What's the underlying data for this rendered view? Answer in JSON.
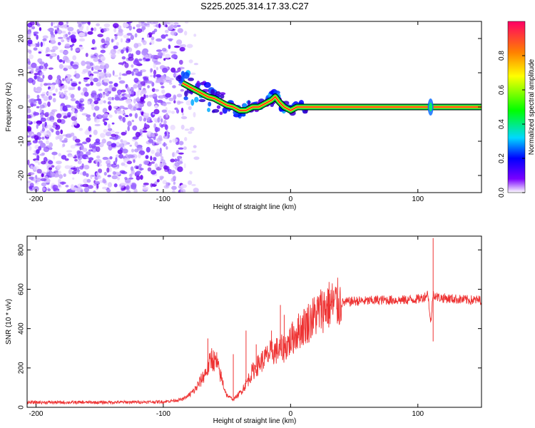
{
  "title": "S225.2025.314.17.33.C27",
  "chart_data": [
    {
      "type": "heatmap",
      "title": "S225.2025.314.17.33.C27",
      "xlabel": "Height of straight line (km)",
      "ylabel": "Frequency (Hz)",
      "xlim": [
        -207,
        150
      ],
      "ylim": [
        -25,
        25
      ],
      "xticks": [
        -200,
        -100,
        0,
        100
      ],
      "yticks": [
        -20,
        -10,
        0,
        10,
        20
      ],
      "colorbar": {
        "label": "Normalized spectral amplitude",
        "range": [
          0,
          1
        ],
        "ticks": [
          0.0,
          0.2,
          0.4,
          0.6,
          0.8
        ],
        "tick_labels": [
          "0.0",
          "0.2",
          "0.4",
          "0.6",
          "0.8"
        ]
      },
      "noise_region_x": [
        -207,
        -85
      ],
      "carrier_track": [
        {
          "x": -85,
          "f": 7
        },
        {
          "x": -80,
          "f": 6
        },
        {
          "x": -75,
          "f": 5
        },
        {
          "x": -70,
          "f": 4
        },
        {
          "x": -65,
          "f": 3
        },
        {
          "x": -60,
          "f": 2.5
        },
        {
          "x": -55,
          "f": 1.5
        },
        {
          "x": -50,
          "f": 0.5
        },
        {
          "x": -45,
          "f": 0
        },
        {
          "x": -40,
          "f": -1
        },
        {
          "x": -35,
          "f": -1
        },
        {
          "x": -30,
          "f": 0
        },
        {
          "x": -25,
          "f": 0
        },
        {
          "x": -20,
          "f": 1
        },
        {
          "x": -15,
          "f": 2
        },
        {
          "x": -12,
          "f": 3
        },
        {
          "x": -9,
          "f": 1.5
        },
        {
          "x": -5,
          "f": 0
        },
        {
          "x": 0,
          "f": -1
        },
        {
          "x": 5,
          "f": 0
        },
        {
          "x": 10,
          "f": 0
        },
        {
          "x": 15,
          "f": 0
        },
        {
          "x": 108,
          "f": 0
        },
        {
          "x": 110,
          "f": 0
        },
        {
          "x": 150,
          "f": 0
        }
      ]
    },
    {
      "type": "line",
      "xlabel": "Height of straight line (km)",
      "ylabel": "SNR (10 * v/v)",
      "xlim": [
        -207,
        150
      ],
      "ylim": [
        0,
        870
      ],
      "xticks": [
        -200,
        -100,
        0,
        100
      ],
      "yticks": [
        0,
        200,
        400,
        600,
        800
      ],
      "series": [
        {
          "name": "SNR",
          "color": "#ee3333",
          "x": [
            -207,
            -150,
            -100,
            -85,
            -80,
            -75,
            -70,
            -65,
            -62,
            -58,
            -55,
            -52,
            -50,
            -45,
            -40,
            -35,
            -30,
            -25,
            -20,
            -15,
            -10,
            -5,
            0,
            5,
            10,
            15,
            20,
            25,
            30,
            40,
            50,
            60,
            70,
            80,
            90,
            100,
            105,
            108,
            110,
            112,
            115,
            120,
            130,
            140,
            150
          ],
          "y": [
            25,
            25,
            28,
            40,
            60,
            90,
            140,
            200,
            250,
            220,
            160,
            100,
            60,
            40,
            70,
            120,
            180,
            220,
            250,
            280,
            290,
            300,
            340,
            380,
            410,
            440,
            470,
            500,
            520,
            530,
            540,
            540,
            545,
            545,
            545,
            550,
            560,
            580,
            420,
            580,
            560,
            555,
            550,
            545,
            545
          ]
        }
      ],
      "spikes": [
        {
          "x": -65,
          "y": 350
        },
        {
          "x": -62,
          "y": 300
        },
        {
          "x": -58,
          "y": 280
        },
        {
          "x": -45,
          "y": 270
        },
        {
          "x": -35,
          "y": 390
        },
        {
          "x": -27,
          "y": 320
        },
        {
          "x": -15,
          "y": 390
        },
        {
          "x": -8,
          "y": 520
        },
        {
          "x": -5,
          "y": 470
        },
        {
          "x": 112,
          "y": 860
        },
        {
          "x": 112,
          "y": 335
        }
      ]
    }
  ]
}
